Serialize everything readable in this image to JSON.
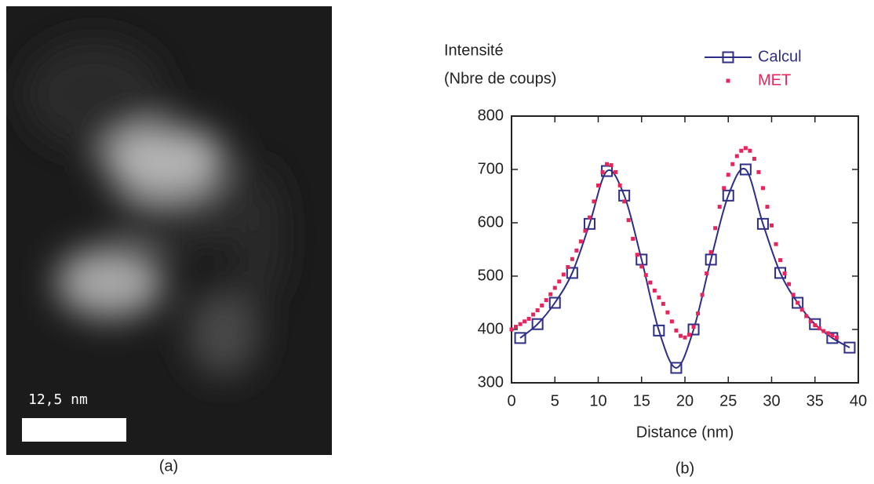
{
  "figure": {
    "scale_bar_label": "12,5 nm",
    "panel_a_label": "(a)",
    "panel_b_label": "(b)"
  },
  "chart_data": {
    "type": "line",
    "ylabel_lines": [
      "Intensité",
      "(Nbre de coups)"
    ],
    "xlabel": "Distance (nm)",
    "xlim": [
      0,
      40
    ],
    "xticks": [
      0,
      5,
      10,
      15,
      20,
      25,
      30,
      35,
      40
    ],
    "ylim": [
      300,
      800
    ],
    "yticks": [
      300,
      400,
      500,
      600,
      700,
      800
    ],
    "grid": false,
    "series": [
      {
        "name": "Calcul",
        "color": "#2e2e87",
        "marker": "square",
        "line": true,
        "x": [
          1,
          3,
          5,
          7,
          9,
          11,
          13,
          15,
          17,
          19,
          21,
          23,
          25,
          27,
          29,
          31,
          33,
          35,
          37,
          39
        ],
        "values": [
          384,
          410,
          450,
          506,
          598,
          697,
          651,
          531,
          398,
          328,
          400,
          531,
          651,
          700,
          598,
          506,
          450,
          410,
          384,
          366
        ]
      },
      {
        "name": "MET",
        "color": "#e8245c",
        "marker": "dot",
        "line": false,
        "x": [
          0,
          0.5,
          1,
          1.5,
          2,
          2.5,
          3,
          3.5,
          4,
          4.5,
          5,
          5.5,
          6,
          6.5,
          7,
          7.5,
          8,
          8.5,
          9,
          9.5,
          10,
          10.5,
          11,
          11.5,
          12,
          12.5,
          13,
          13.5,
          14,
          14.5,
          15,
          15.5,
          16,
          16.5,
          17,
          17.5,
          18,
          18.5,
          19,
          19.5,
          20,
          20.5,
          21,
          21.5,
          22,
          22.5,
          23,
          23.5,
          24,
          24.5,
          25,
          25.5,
          26,
          26.5,
          27,
          27.5,
          28,
          28.5,
          29,
          29.5,
          30,
          30.5,
          31,
          31.5,
          32,
          32.5,
          33,
          33.5,
          34,
          34.5,
          35,
          35.5,
          36,
          36.5,
          37,
          37.5
        ],
        "values": [
          400,
          405,
          410,
          415,
          420,
          428,
          436,
          445,
          455,
          466,
          478,
          490,
          503,
          517,
          532,
          548,
          565,
          585,
          610,
          640,
          670,
          695,
          710,
          708,
          695,
          670,
          640,
          605,
          570,
          540,
          518,
          502,
          488,
          473,
          460,
          448,
          432,
          415,
          398,
          388,
          385,
          390,
          405,
          430,
          465,
          505,
          545,
          590,
          630,
          665,
          690,
          710,
          725,
          735,
          740,
          735,
          720,
          695,
          665,
          630,
          595,
          560,
          530,
          505,
          485,
          465,
          450,
          437,
          425,
          415,
          408,
          402,
          397,
          393,
          389,
          385
        ]
      }
    ]
  }
}
